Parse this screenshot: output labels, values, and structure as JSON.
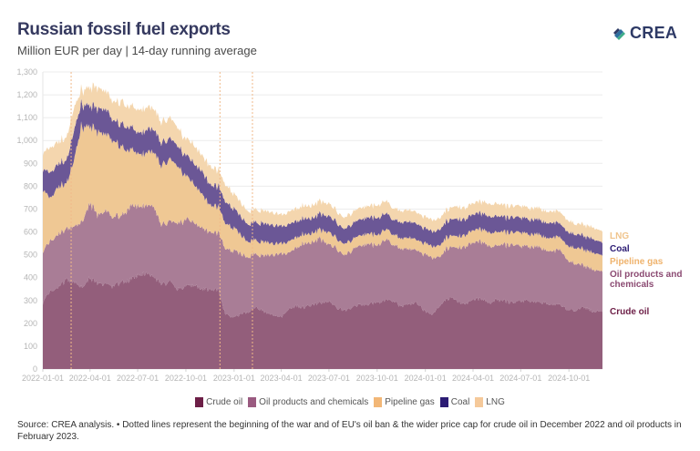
{
  "header": {
    "title": "Russian fossil fuel exports",
    "subtitle": "Million EUR per day | 14-day running average",
    "logo_text": "CREA"
  },
  "colors": {
    "crude_oil": "#935e7b",
    "oil_products": "#a97d96",
    "pipeline_gas": "#efc894",
    "coal": "#6b5796",
    "lng": "#f4d6ae",
    "title": "#35395f",
    "event_line": "#f0b989"
  },
  "legend": [
    {
      "label": "Crude oil",
      "color": "#6d1f47"
    },
    {
      "label": "Oil products and chemicals",
      "color": "#9a5a80"
    },
    {
      "label": "Pipeline gas",
      "color": "#f2b777"
    },
    {
      "label": "Coal",
      "color": "#2c1c74"
    },
    {
      "label": "LNG",
      "color": "#f5c99a"
    }
  ],
  "footer": {
    "source": "Source: CREA analysis. • Dotted lines represent the beginning of the war and of EU's oil ban & the wider price cap for crude oil in December 2022 and oil products in February 2023."
  },
  "chart_data": {
    "type": "area",
    "stacked": true,
    "title": "Russian fossil fuel exports",
    "subtitle": "Million EUR per day | 14-day running average",
    "xlabel": "",
    "ylabel": "",
    "ylim": [
      0,
      1300
    ],
    "yticks": [
      0,
      100,
      200,
      300,
      400,
      500,
      600,
      700,
      800,
      900,
      1000,
      1100,
      1200,
      1300
    ],
    "ytick_labels": [
      "0",
      "100",
      "200",
      "300",
      "400",
      "500",
      "600",
      "700",
      "800",
      "900",
      "1,000",
      "1,100",
      "1,200",
      "1,300"
    ],
    "xlim": [
      "2022-01-01",
      "2024-12-04"
    ],
    "xticks": [
      "2022-01-01",
      "2022-04-01",
      "2022-07-01",
      "2022-10-01",
      "2023-01-01",
      "2023-04-01",
      "2023-07-01",
      "2023-10-01",
      "2024-01-01",
      "2024-04-01",
      "2024-07-01",
      "2024-10-01"
    ],
    "grid": true,
    "legend_position": "bottom",
    "event_lines": [
      "2022-02-24",
      "2022-12-05",
      "2023-02-05"
    ],
    "x": [
      "2022-01-01",
      "2022-01-15",
      "2022-02-01",
      "2022-02-15",
      "2022-03-01",
      "2022-03-15",
      "2022-04-01",
      "2022-04-15",
      "2022-05-01",
      "2022-05-15",
      "2022-06-01",
      "2022-06-15",
      "2022-07-01",
      "2022-07-15",
      "2022-08-01",
      "2022-08-15",
      "2022-09-01",
      "2022-09-15",
      "2022-10-01",
      "2022-10-15",
      "2022-11-01",
      "2022-11-15",
      "2022-12-01",
      "2022-12-15",
      "2023-01-01",
      "2023-01-15",
      "2023-02-01",
      "2023-02-15",
      "2023-03-01",
      "2023-03-15",
      "2023-04-01",
      "2023-04-15",
      "2023-05-01",
      "2023-05-15",
      "2023-06-01",
      "2023-06-15",
      "2023-07-01",
      "2023-07-15",
      "2023-08-01",
      "2023-08-15",
      "2023-09-01",
      "2023-09-15",
      "2023-10-01",
      "2023-10-15",
      "2023-11-01",
      "2023-11-15",
      "2023-12-01",
      "2023-12-15",
      "2024-01-01",
      "2024-01-15",
      "2024-02-01",
      "2024-02-15",
      "2024-03-01",
      "2024-03-15",
      "2024-04-01",
      "2024-04-15",
      "2024-05-01",
      "2024-05-15",
      "2024-06-01",
      "2024-06-15",
      "2024-07-01",
      "2024-07-15",
      "2024-08-01",
      "2024-08-15",
      "2024-09-01",
      "2024-09-15",
      "2024-10-01",
      "2024-10-15",
      "2024-11-01",
      "2024-11-15",
      "2024-12-04"
    ],
    "series": [
      {
        "name": "Crude oil",
        "values": [
          290,
          340,
          360,
          390,
          380,
          360,
          400,
          370,
          370,
          360,
          380,
          390,
          410,
          420,
          400,
          370,
          380,
          350,
          360,
          370,
          350,
          345,
          350,
          240,
          225,
          240,
          255,
          270,
          250,
          240,
          225,
          260,
          275,
          270,
          280,
          290,
          300,
          265,
          255,
          270,
          280,
          285,
          290,
          300,
          300,
          275,
          285,
          290,
          250,
          240,
          290,
          310,
          300,
          280,
          300,
          310,
          290,
          300,
          295,
          290,
          295,
          300,
          295,
          290,
          285,
          280,
          255,
          260,
          270,
          250,
          250
        ]
      },
      {
        "name": "Oil products and chemicals",
        "values": [
          220,
          220,
          230,
          220,
          240,
          280,
          330,
          300,
          320,
          300,
          290,
          320,
          300,
          300,
          300,
          260,
          260,
          290,
          290,
          280,
          270,
          250,
          250,
          290,
          290,
          260,
          240,
          230,
          250,
          260,
          275,
          245,
          260,
          280,
          270,
          280,
          250,
          260,
          240,
          250,
          260,
          265,
          245,
          265,
          245,
          255,
          240,
          230,
          250,
          245,
          215,
          225,
          230,
          250,
          250,
          250,
          250,
          240,
          245,
          250,
          240,
          235,
          245,
          235,
          235,
          240,
          215,
          200,
          180,
          185,
          175
        ]
      },
      {
        "name": "Pipeline gas",
        "values": [
          270,
          190,
          210,
          200,
          280,
          420,
          340,
          360,
          340,
          330,
          300,
          250,
          230,
          230,
          240,
          260,
          280,
          250,
          190,
          170,
          150,
          120,
          115,
          110,
          100,
          80,
          65,
          60,
          60,
          50,
          45,
          50,
          45,
          40,
          40,
          40,
          55,
          45,
          50,
          45,
          45,
          45,
          45,
          45,
          45,
          45,
          50,
          45,
          50,
          50,
          50,
          50,
          50,
          50,
          55,
          55,
          60,
          60,
          55,
          55,
          60,
          55,
          55,
          55,
          60,
          55,
          65,
          70,
          70,
          75,
          70
        ]
      },
      {
        "name": "Coal",
        "values": [
          90,
          110,
          100,
          100,
          130,
          100,
          90,
          100,
          110,
          90,
          100,
          100,
          90,
          100,
          100,
          100,
          90,
          90,
          90,
          90,
          100,
          90,
          90,
          95,
          85,
          80,
          75,
          80,
          80,
          80,
          75,
          75,
          70,
          70,
          65,
          70,
          70,
          70,
          65,
          70,
          70,
          70,
          75,
          70,
          65,
          70,
          70,
          70,
          65,
          65,
          70,
          70,
          75,
          70,
          70,
          70,
          70,
          70,
          65,
          65,
          65,
          65,
          65,
          65,
          65,
          60,
          60,
          60,
          60,
          60,
          55
        ]
      },
      {
        "name": "LNG",
        "values": [
          70,
          110,
          95,
          100,
          100,
          60,
          80,
          90,
          80,
          80,
          100,
          90,
          100,
          100,
          90,
          90,
          90,
          80,
          70,
          80,
          70,
          80,
          70,
          75,
          65,
          60,
          55,
          55,
          55,
          55,
          50,
          55,
          55,
          55,
          55,
          55,
          55,
          50,
          50,
          50,
          50,
          50,
          55,
          55,
          50,
          50,
          50,
          50,
          50,
          50,
          50,
          50,
          55,
          50,
          50,
          50,
          55,
          55,
          50,
          50,
          50,
          50,
          50,
          50,
          50,
          50,
          50,
          45,
          50,
          50,
          50
        ]
      }
    ],
    "end_labels": [
      "LNG",
      "Coal",
      "Pipeline gas",
      "Oil products and chemicals",
      "Crude oil"
    ]
  }
}
